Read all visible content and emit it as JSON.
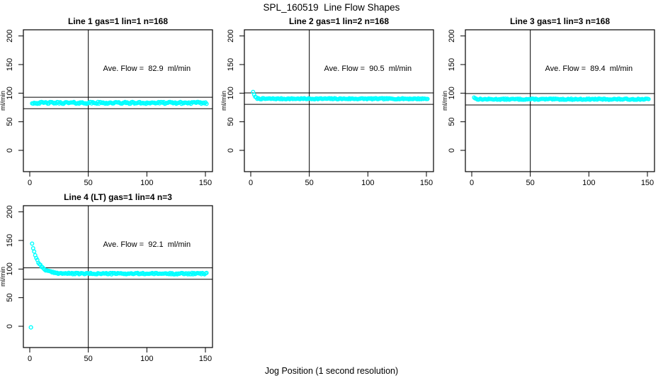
{
  "figure": {
    "title": "SPL_160519  Line Flow Shapes",
    "xlabel": "Jog Position (1 second resolution)",
    "ylabel": "ml/min"
  },
  "colors": {
    "points": "#00ffff",
    "axis_lines": "#000000",
    "background": "#ffffff"
  },
  "chart_data": [
    {
      "type": "scatter",
      "title": "Line 1 gas=1 lin=1 n=168",
      "annotation": "Ave. Flow =  82.9  ml/min",
      "ave_flow_ml_min": 82.9,
      "n": 168,
      "grid": [
        0,
        0
      ],
      "xlim": [
        0,
        150
      ],
      "ylim": [
        0,
        200
      ],
      "x_ticks": [
        0,
        50,
        100,
        150
      ],
      "y_ticks": [
        0,
        50,
        100,
        150,
        200
      ],
      "vline_x": 50,
      "hlines_y": [
        92.9,
        72.9
      ],
      "series_shape": {
        "baseline": 83,
        "noise": 1.7,
        "x_start": 2,
        "x_end": 151,
        "transient": null,
        "seed": 42
      },
      "landmark_points": [
        [
          2,
          83
        ],
        [
          50,
          83
        ],
        [
          100,
          83.5
        ],
        [
          151,
          83
        ]
      ],
      "outliers": []
    },
    {
      "type": "scatter",
      "title": "Line 2 gas=1 lin=2 n=168",
      "annotation": "Ave. Flow =  90.5  ml/min",
      "ave_flow_ml_min": 90.5,
      "n": 168,
      "grid": [
        0,
        1
      ],
      "xlim": [
        0,
        150
      ],
      "ylim": [
        0,
        200
      ],
      "x_ticks": [
        0,
        50,
        100,
        150
      ],
      "y_ticks": [
        0,
        50,
        100,
        150,
        200
      ],
      "vline_x": 50,
      "hlines_y": [
        100.5,
        80.5
      ],
      "series_shape": {
        "baseline": 90.2,
        "noise": 1.0,
        "x_start": 2,
        "x_end": 151,
        "transient": {
          "amp": 12.5,
          "tau": 1.3
        },
        "seed": 7
      },
      "landmark_points": [
        [
          2,
          103
        ],
        [
          3,
          97
        ],
        [
          4,
          93.5
        ],
        [
          6,
          91
        ],
        [
          50,
          90.3
        ],
        [
          151,
          90
        ]
      ],
      "outliers": []
    },
    {
      "type": "scatter",
      "title": "Line 3 gas=1 lin=3 n=168",
      "annotation": "Ave. Flow =  89.4  ml/min",
      "ave_flow_ml_min": 89.4,
      "n": 168,
      "grid": [
        0,
        2
      ],
      "xlim": [
        0,
        150
      ],
      "ylim": [
        0,
        200
      ],
      "x_ticks": [
        0,
        50,
        100,
        150
      ],
      "y_ticks": [
        0,
        50,
        100,
        150,
        200
      ],
      "vline_x": 50,
      "hlines_y": [
        99.4,
        79.4
      ],
      "series_shape": {
        "baseline": 89.4,
        "noise": 1.0,
        "x_start": 2,
        "x_end": 151,
        "transient": {
          "amp": 3.5,
          "tau": 1.0
        },
        "seed": 13
      },
      "landmark_points": [
        [
          2,
          92.5
        ],
        [
          50,
          89.5
        ],
        [
          100,
          89.4
        ],
        [
          151,
          89.3
        ]
      ],
      "outliers": []
    },
    {
      "type": "scatter",
      "title": "Line 4 (LT) gas=1 lin=4 n=3",
      "annotation": "Ave. Flow =  92.1  ml/min",
      "ave_flow_ml_min": 92.1,
      "n": 3,
      "grid": [
        1,
        0
      ],
      "xlim": [
        0,
        150
      ],
      "ylim": [
        0,
        200
      ],
      "x_ticks": [
        0,
        50,
        100,
        150
      ],
      "y_ticks": [
        0,
        50,
        100,
        150,
        200
      ],
      "vline_x": 50,
      "hlines_y": [
        102.1,
        82.1
      ],
      "series_shape": {
        "baseline": 92,
        "noise": 1.3,
        "x_start": 2,
        "x_end": 151,
        "transient": {
          "amp": 53,
          "tau": 5.5
        },
        "seed": 99
      },
      "landmark_points": [
        [
          1,
          -2
        ],
        [
          2,
          145
        ],
        [
          5,
          131
        ],
        [
          10,
          103
        ],
        [
          15,
          96
        ],
        [
          20,
          94
        ],
        [
          50,
          92.5
        ],
        [
          151,
          91.5
        ]
      ],
      "outliers": [
        [
          1,
          -2
        ]
      ]
    }
  ]
}
